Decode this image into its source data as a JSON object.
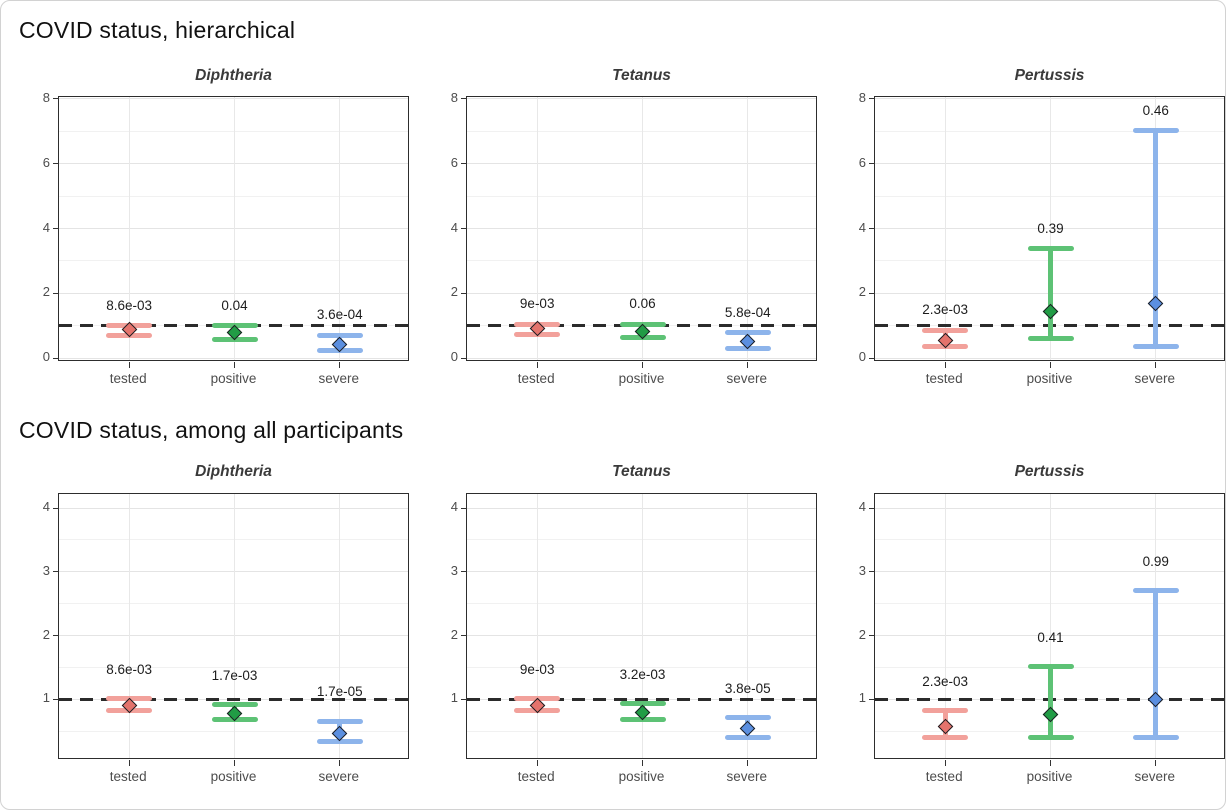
{
  "figure_title_1": "COVID status, hierarchical",
  "figure_title_2": "COVID status, among all participants",
  "colors": {
    "reference_line": "#2b2b2b",
    "panel_border": "#2d2d2d",
    "grid_major": "#e4e4e4",
    "grid_minor": "#f1f1f1",
    "tick_label": "#4d4d4d",
    "series": {
      "tested": {
        "bar": "#f2a19b",
        "diamond": "#e4736c"
      },
      "positive": {
        "bar": "#5dc275",
        "diamond": "#219c45"
      },
      "severe": {
        "bar": "#8db4eb",
        "diamond": "#5b8fe0"
      }
    }
  },
  "chart_data": [
    {
      "type": "scatter",
      "section_title": "COVID status, hierarchical",
      "categories": [
        "tested",
        "positive",
        "severe"
      ],
      "xlabel": "",
      "ylabel": "",
      "ylim": [
        -0.12,
        8.06
      ],
      "yticks_major": [
        0,
        2,
        4,
        6,
        8
      ],
      "yticks_minor": [
        1,
        3,
        5,
        7
      ],
      "reference_line_y": 1,
      "p_label_offset": 0.62,
      "grid": true,
      "panels": [
        {
          "title": "Diphtheria",
          "points": [
            {
              "category": "tested",
              "estimate": 0.88,
              "ci_low": 0.7,
              "ci_high": 1.0,
              "p_label": "8.6e-03"
            },
            {
              "category": "positive",
              "estimate": 0.8,
              "ci_low": 0.58,
              "ci_high": 1.0,
              "p_label": "0.04"
            },
            {
              "category": "severe",
              "estimate": 0.43,
              "ci_low": 0.25,
              "ci_high": 0.71,
              "p_label": "3.6e-04"
            }
          ]
        },
        {
          "title": "Tetanus",
          "points": [
            {
              "category": "tested",
              "estimate": 0.9,
              "ci_low": 0.72,
              "ci_high": 1.04,
              "p_label": "9e-03"
            },
            {
              "category": "positive",
              "estimate": 0.82,
              "ci_low": 0.63,
              "ci_high": 1.05,
              "p_label": "0.06"
            },
            {
              "category": "severe",
              "estimate": 0.5,
              "ci_low": 0.3,
              "ci_high": 0.78,
              "p_label": "5.8e-04"
            }
          ]
        },
        {
          "title": "Pertussis",
          "points": [
            {
              "category": "tested",
              "estimate": 0.55,
              "ci_low": 0.35,
              "ci_high": 0.85,
              "p_label": "2.3e-03"
            },
            {
              "category": "positive",
              "estimate": 1.43,
              "ci_low": 0.62,
              "ci_high": 3.38,
              "p_label": "0.39"
            },
            {
              "category": "severe",
              "estimate": 1.7,
              "ci_low": 0.37,
              "ci_high": 7.02,
              "p_label": "0.46"
            }
          ]
        }
      ]
    },
    {
      "type": "scatter",
      "section_title": "COVID status, among all participants",
      "categories": [
        "tested",
        "positive",
        "severe"
      ],
      "xlabel": "",
      "ylabel": "",
      "ylim": [
        0.05,
        4.22
      ],
      "yticks_major": [
        1,
        2,
        3,
        4
      ],
      "yticks_minor": [
        0.5,
        1.5,
        2.5,
        3.5
      ],
      "reference_line_y": 1,
      "p_label_offset": 0.45,
      "grid": true,
      "panels": [
        {
          "title": "Diphtheria",
          "points": [
            {
              "category": "tested",
              "estimate": 0.9,
              "ci_low": 0.83,
              "ci_high": 1.01,
              "p_label": "8.6e-03"
            },
            {
              "category": "positive",
              "estimate": 0.78,
              "ci_low": 0.68,
              "ci_high": 0.92,
              "p_label": "1.7e-03"
            },
            {
              "category": "severe",
              "estimate": 0.47,
              "ci_low": 0.34,
              "ci_high": 0.66,
              "p_label": "1.7e-05"
            }
          ]
        },
        {
          "title": "Tetanus",
          "points": [
            {
              "category": "tested",
              "estimate": 0.9,
              "ci_low": 0.82,
              "ci_high": 1.01,
              "p_label": "9e-03"
            },
            {
              "category": "positive",
              "estimate": 0.8,
              "ci_low": 0.68,
              "ci_high": 0.94,
              "p_label": "3.2e-03"
            },
            {
              "category": "severe",
              "estimate": 0.54,
              "ci_low": 0.4,
              "ci_high": 0.71,
              "p_label": "3.8e-05"
            }
          ]
        },
        {
          "title": "Pertussis",
          "points": [
            {
              "category": "tested",
              "estimate": 0.57,
              "ci_low": 0.41,
              "ci_high": 0.83,
              "p_label": "2.3e-03"
            },
            {
              "category": "positive",
              "estimate": 0.76,
              "ci_low": 0.41,
              "ci_high": 1.52,
              "p_label": "0.41"
            },
            {
              "category": "severe",
              "estimate": 1.0,
              "ci_low": 0.41,
              "ci_high": 2.7,
              "p_label": "0.99"
            }
          ]
        }
      ]
    }
  ]
}
